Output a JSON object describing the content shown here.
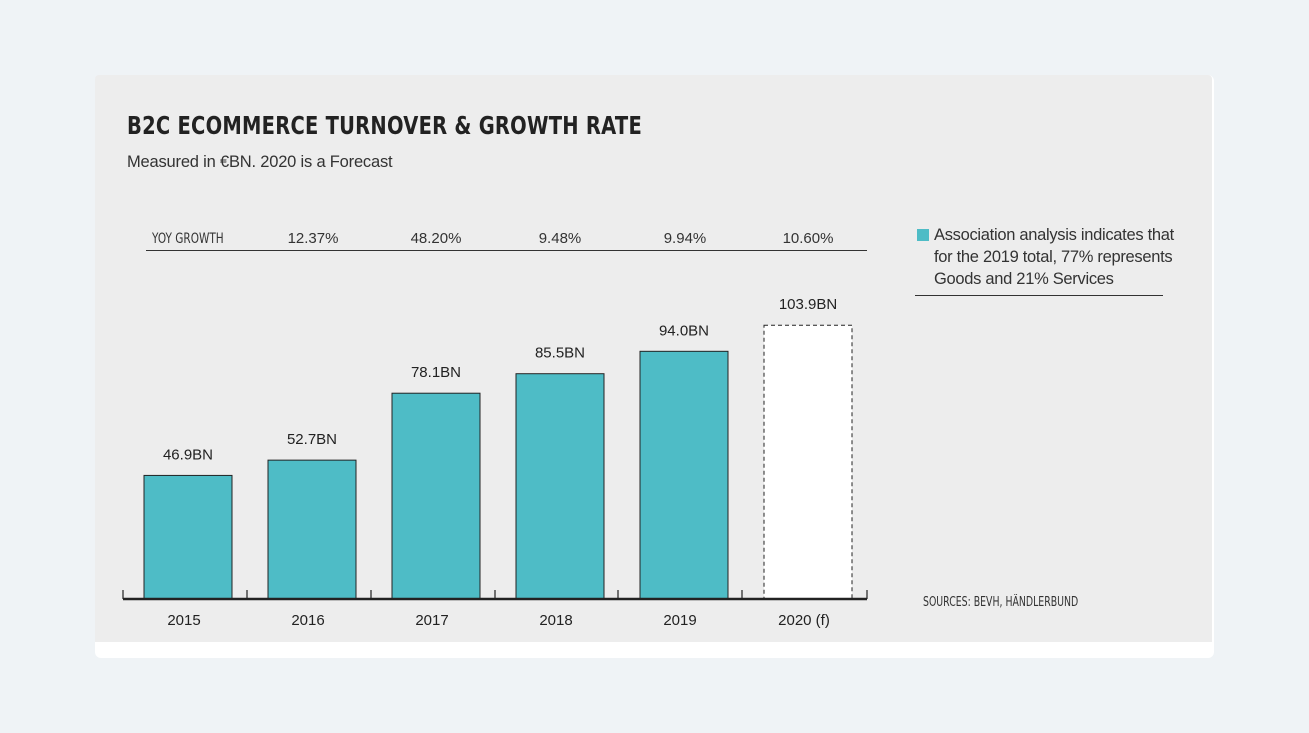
{
  "chart_data": {
    "type": "bar",
    "title": "B2C ECOMMERCE TURNOVER & GROWTH RATE",
    "subtitle": "Measured in €BN. 2020 is a Forecast",
    "categories": [
      "2015",
      "2016",
      "2017",
      "2018",
      "2019",
      "2020 (f)"
    ],
    "values": [
      46.9,
      52.7,
      78.1,
      85.5,
      94.0,
      103.9
    ],
    "value_labels": [
      "46.9BN",
      "52.7BN",
      "78.1BN",
      "85.5BN",
      "94.0BN",
      "103.9BN"
    ],
    "forecast": [
      false,
      false,
      false,
      false,
      false,
      true
    ],
    "yoy_growth_label": "YOY GROWTH",
    "yoy_growth": [
      "12.37%",
      "48.20%",
      "9.48%",
      "9.94%",
      "10.60%"
    ],
    "legend": "Association analysis indicates that for the 2019 total, 77% represents Goods and 21% Services",
    "sources": "SOURCES: BEVH, HÄNDLERBUND",
    "bar_color": "#4ebcc6",
    "forecast_fill": "#ffffff"
  }
}
